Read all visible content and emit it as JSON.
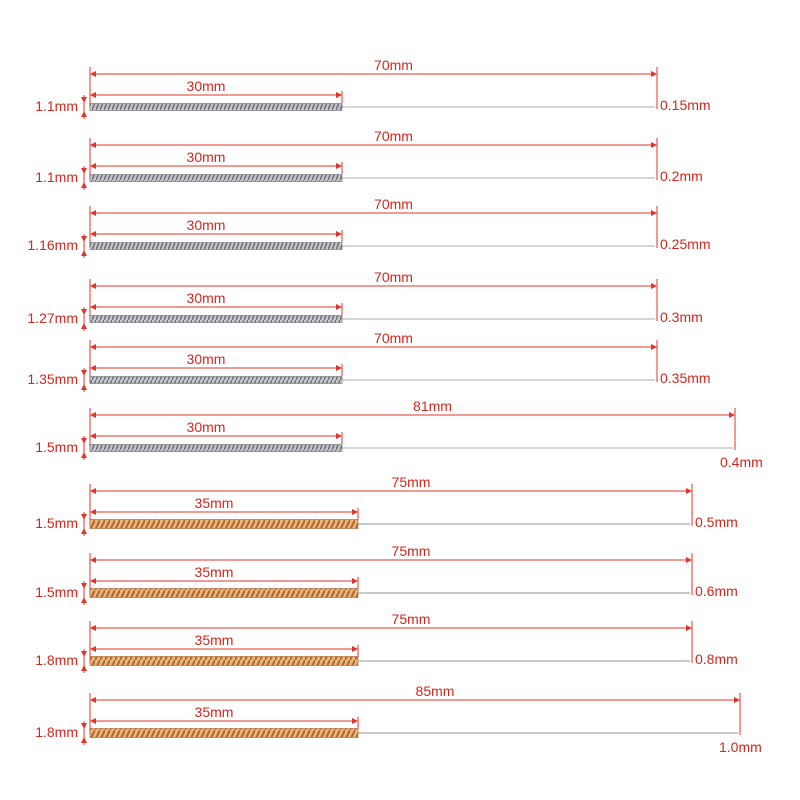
{
  "colors": {
    "dimension_line": "#e0352b",
    "label_text": "#d0281f",
    "silver_coil": "#a9acb0",
    "silver_coil_dark": "#6f7276",
    "gold_coil": "#d9924f",
    "gold_coil_dark": "#a8612a",
    "shaft": "#c9c9c9"
  },
  "needles": [
    {
      "total_length": "70mm",
      "handle_length": "30mm",
      "handle_diameter": "1.1mm",
      "tip_diameter": "0.15mm",
      "handle_material": "silver"
    },
    {
      "total_length": "70mm",
      "handle_length": "30mm",
      "handle_diameter": "1.1mm",
      "tip_diameter": "0.2mm",
      "handle_material": "silver"
    },
    {
      "total_length": "70mm",
      "handle_length": "30mm",
      "handle_diameter": "1.16mm",
      "tip_diameter": "0.25mm",
      "handle_material": "silver"
    },
    {
      "total_length": "70mm",
      "handle_length": "30mm",
      "handle_diameter": "1.27mm",
      "tip_diameter": "0.3mm",
      "handle_material": "silver"
    },
    {
      "total_length": "70mm",
      "handle_length": "30mm",
      "handle_diameter": "1.35mm",
      "tip_diameter": "0.35mm",
      "handle_material": "silver"
    },
    {
      "total_length": "81mm",
      "handle_length": "30mm",
      "handle_diameter": "1.5mm",
      "tip_diameter": "0.4mm",
      "handle_material": "silver"
    },
    {
      "total_length": "75mm",
      "handle_length": "35mm",
      "handle_diameter": "1.5mm",
      "tip_diameter": "0.5mm",
      "handle_material": "gold"
    },
    {
      "total_length": "75mm",
      "handle_length": "35mm",
      "handle_diameter": "1.5mm",
      "tip_diameter": "0.6mm",
      "handle_material": "gold"
    },
    {
      "total_length": "75mm",
      "handle_length": "35mm",
      "handle_diameter": "1.8mm",
      "tip_diameter": "0.8mm",
      "handle_material": "gold"
    },
    {
      "total_length": "85mm",
      "handle_length": "35mm",
      "handle_diameter": "1.8mm",
      "tip_diameter": "1.0mm",
      "handle_material": "gold"
    }
  ]
}
